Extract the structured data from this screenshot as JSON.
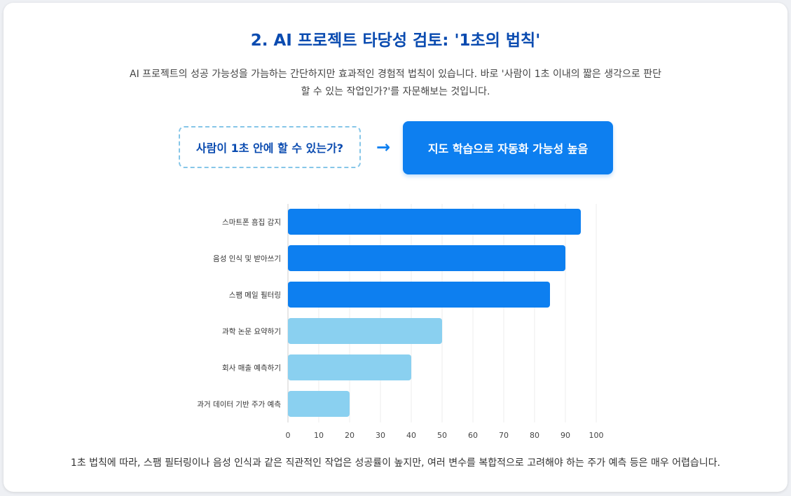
{
  "title": "2. AI 프로젝트 타당성 검토: '1초의 법칙'",
  "description": "AI 프로젝트의 성공 가능성을 가늠하는 간단하지만 효과적인 경험적 법칙이 있습니다. 바로 '사람이 1초 이내의 짧은 생각으로 판단할 수 있는 작업인가?'를 자문해보는 것입니다.",
  "rule": {
    "question": "사람이 1초 안에 할 수 있는가?",
    "arrow": "→",
    "answer": "지도 학습으로 자동화 가능성 높음"
  },
  "colors": {
    "high": "#0d7ff0",
    "low": "#8ad0f0"
  },
  "chart_data": {
    "type": "bar",
    "orientation": "horizontal",
    "categories": [
      "스마트폰 흠집 감지",
      "음성 인식 및 받아쓰기",
      "스팸 메일 필터링",
      "과학 논문 요약하기",
      "회사 매출 예측하기",
      "과거 데이터 기반 주가 예측"
    ],
    "values": [
      95,
      90,
      85,
      50,
      40,
      20
    ],
    "bar_colors": [
      "#0d7ff0",
      "#0d7ff0",
      "#0d7ff0",
      "#8ad0f0",
      "#8ad0f0",
      "#8ad0f0"
    ],
    "xlim": [
      0,
      100
    ],
    "xticks": [
      0,
      10,
      20,
      30,
      40,
      50,
      60,
      70,
      80,
      90,
      100
    ],
    "grid": true,
    "title": "",
    "xlabel": "",
    "ylabel": ""
  },
  "footer": "1초 법칙에 따라, 스팸 필터링이나 음성 인식과 같은 직관적인 작업은 성공률이 높지만, 여러 변수를 복합적으로 고려해야 하는 주가 예측 등은 매우 어렵습니다."
}
